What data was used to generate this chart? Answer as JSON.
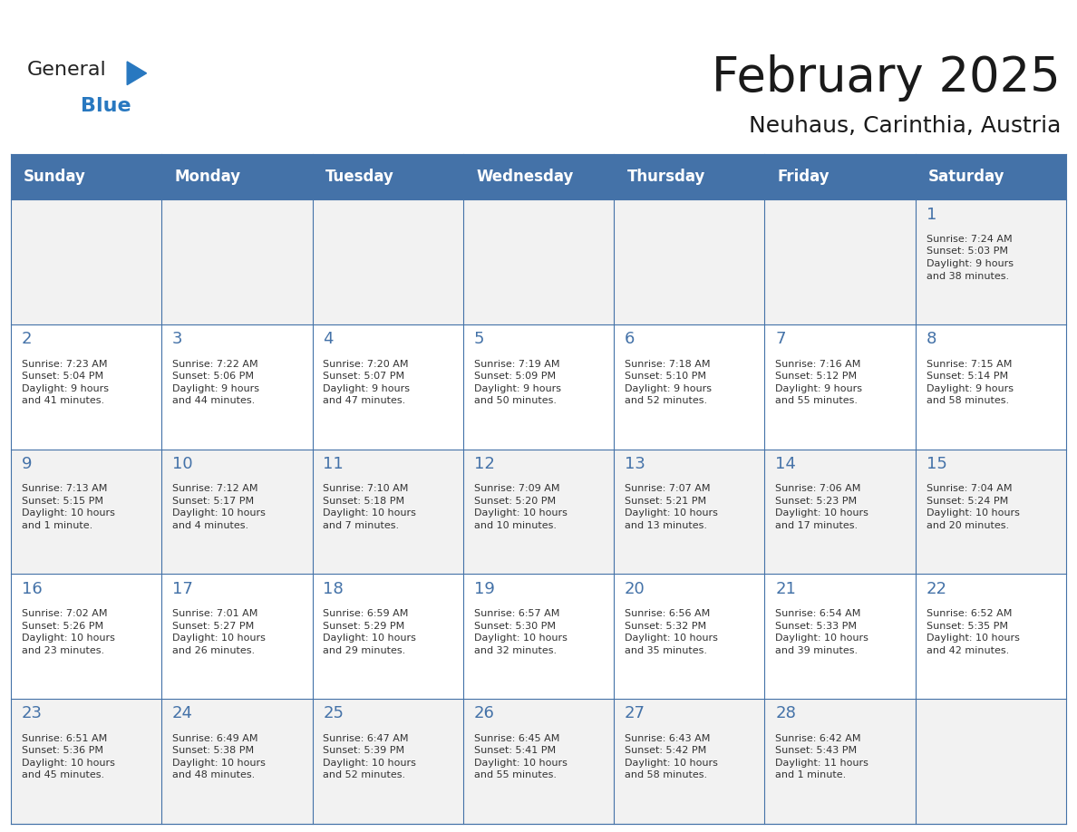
{
  "title": "February 2025",
  "subtitle": "Neuhaus, Carinthia, Austria",
  "days_of_week": [
    "Sunday",
    "Monday",
    "Tuesday",
    "Wednesday",
    "Thursday",
    "Friday",
    "Saturday"
  ],
  "header_bg": "#4472a8",
  "header_text": "#ffffff",
  "cell_bg_even": "#f2f2f2",
  "cell_bg_odd": "#ffffff",
  "border_color": "#4472a8",
  "day_number_color": "#4472a8",
  "text_color": "#333333",
  "logo_general_color": "#222222",
  "logo_blue_color": "#2878c0",
  "calendar_data": [
    [
      null,
      null,
      null,
      null,
      null,
      null,
      {
        "day": 1,
        "sunrise": "7:24 AM",
        "sunset": "5:03 PM",
        "daylight": "9 hours\nand 38 minutes."
      }
    ],
    [
      {
        "day": 2,
        "sunrise": "7:23 AM",
        "sunset": "5:04 PM",
        "daylight": "9 hours\nand 41 minutes."
      },
      {
        "day": 3,
        "sunrise": "7:22 AM",
        "sunset": "5:06 PM",
        "daylight": "9 hours\nand 44 minutes."
      },
      {
        "day": 4,
        "sunrise": "7:20 AM",
        "sunset": "5:07 PM",
        "daylight": "9 hours\nand 47 minutes."
      },
      {
        "day": 5,
        "sunrise": "7:19 AM",
        "sunset": "5:09 PM",
        "daylight": "9 hours\nand 50 minutes."
      },
      {
        "day": 6,
        "sunrise": "7:18 AM",
        "sunset": "5:10 PM",
        "daylight": "9 hours\nand 52 minutes."
      },
      {
        "day": 7,
        "sunrise": "7:16 AM",
        "sunset": "5:12 PM",
        "daylight": "9 hours\nand 55 minutes."
      },
      {
        "day": 8,
        "sunrise": "7:15 AM",
        "sunset": "5:14 PM",
        "daylight": "9 hours\nand 58 minutes."
      }
    ],
    [
      {
        "day": 9,
        "sunrise": "7:13 AM",
        "sunset": "5:15 PM",
        "daylight": "10 hours\nand 1 minute."
      },
      {
        "day": 10,
        "sunrise": "7:12 AM",
        "sunset": "5:17 PM",
        "daylight": "10 hours\nand 4 minutes."
      },
      {
        "day": 11,
        "sunrise": "7:10 AM",
        "sunset": "5:18 PM",
        "daylight": "10 hours\nand 7 minutes."
      },
      {
        "day": 12,
        "sunrise": "7:09 AM",
        "sunset": "5:20 PM",
        "daylight": "10 hours\nand 10 minutes."
      },
      {
        "day": 13,
        "sunrise": "7:07 AM",
        "sunset": "5:21 PM",
        "daylight": "10 hours\nand 13 minutes."
      },
      {
        "day": 14,
        "sunrise": "7:06 AM",
        "sunset": "5:23 PM",
        "daylight": "10 hours\nand 17 minutes."
      },
      {
        "day": 15,
        "sunrise": "7:04 AM",
        "sunset": "5:24 PM",
        "daylight": "10 hours\nand 20 minutes."
      }
    ],
    [
      {
        "day": 16,
        "sunrise": "7:02 AM",
        "sunset": "5:26 PM",
        "daylight": "10 hours\nand 23 minutes."
      },
      {
        "day": 17,
        "sunrise": "7:01 AM",
        "sunset": "5:27 PM",
        "daylight": "10 hours\nand 26 minutes."
      },
      {
        "day": 18,
        "sunrise": "6:59 AM",
        "sunset": "5:29 PM",
        "daylight": "10 hours\nand 29 minutes."
      },
      {
        "day": 19,
        "sunrise": "6:57 AM",
        "sunset": "5:30 PM",
        "daylight": "10 hours\nand 32 minutes."
      },
      {
        "day": 20,
        "sunrise": "6:56 AM",
        "sunset": "5:32 PM",
        "daylight": "10 hours\nand 35 minutes."
      },
      {
        "day": 21,
        "sunrise": "6:54 AM",
        "sunset": "5:33 PM",
        "daylight": "10 hours\nand 39 minutes."
      },
      {
        "day": 22,
        "sunrise": "6:52 AM",
        "sunset": "5:35 PM",
        "daylight": "10 hours\nand 42 minutes."
      }
    ],
    [
      {
        "day": 23,
        "sunrise": "6:51 AM",
        "sunset": "5:36 PM",
        "daylight": "10 hours\nand 45 minutes."
      },
      {
        "day": 24,
        "sunrise": "6:49 AM",
        "sunset": "5:38 PM",
        "daylight": "10 hours\nand 48 minutes."
      },
      {
        "day": 25,
        "sunrise": "6:47 AM",
        "sunset": "5:39 PM",
        "daylight": "10 hours\nand 52 minutes."
      },
      {
        "day": 26,
        "sunrise": "6:45 AM",
        "sunset": "5:41 PM",
        "daylight": "10 hours\nand 55 minutes."
      },
      {
        "day": 27,
        "sunrise": "6:43 AM",
        "sunset": "5:42 PM",
        "daylight": "10 hours\nand 58 minutes."
      },
      {
        "day": 28,
        "sunrise": "6:42 AM",
        "sunset": "5:43 PM",
        "daylight": "11 hours\nand 1 minute."
      },
      null
    ]
  ]
}
